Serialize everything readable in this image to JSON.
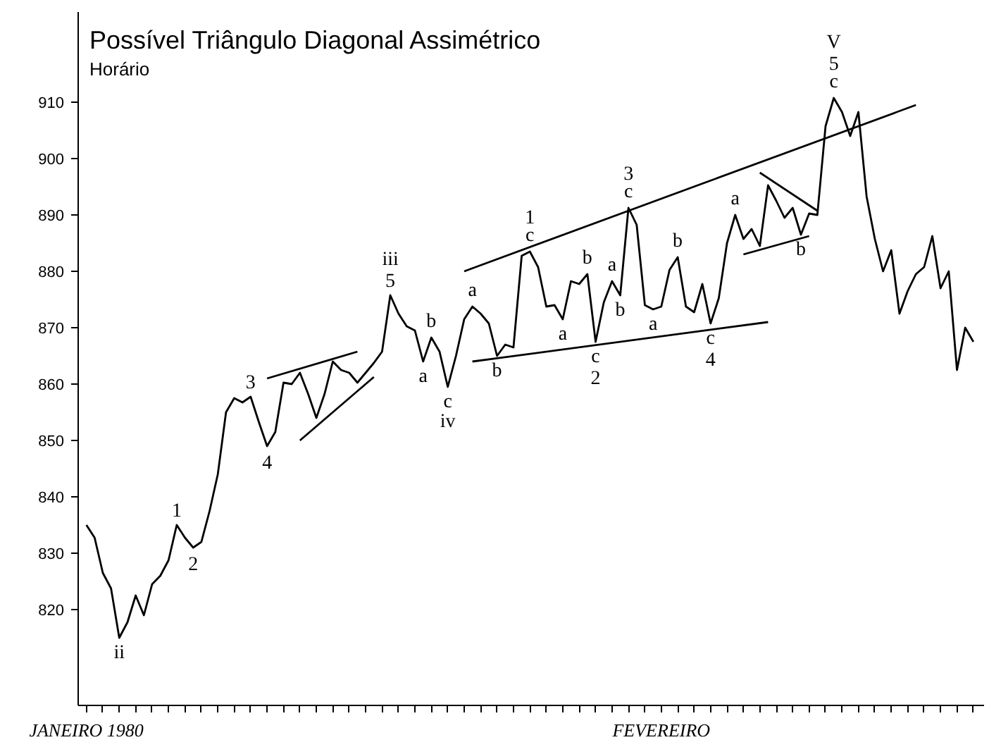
{
  "chart_data": {
    "type": "line",
    "title": "Possível Triângulo Diagonal Assimétrico",
    "subtitle": "Horário",
    "categories": [
      "JANEIRO 1980",
      null,
      null,
      null,
      null,
      null,
      null,
      null,
      null,
      null,
      null,
      null,
      null,
      null,
      null,
      null,
      null,
      null,
      null,
      null,
      null,
      null,
      null,
      null,
      null,
      null,
      null,
      null,
      null,
      null,
      null,
      null,
      null,
      null,
      null,
      null,
      null,
      null,
      null,
      null,
      null,
      null,
      null,
      null,
      null,
      null,
      null,
      null,
      null,
      null,
      null,
      null,
      null,
      null,
      null,
      null,
      null,
      null,
      null,
      null,
      null,
      null,
      null,
      null,
      null,
      null,
      null,
      null,
      null,
      null,
      "FEVEREIRO",
      null,
      null,
      null,
      null,
      null,
      null,
      null,
      null,
      null,
      null,
      null,
      null,
      null,
      null,
      null,
      null,
      null,
      null,
      null,
      null,
      null,
      null,
      null,
      null,
      null,
      null,
      null,
      null,
      null,
      null,
      null,
      null,
      null,
      null,
      null,
      null,
      null,
      null
    ],
    "ylim": [
      803,
      926
    ],
    "yticks": [
      820,
      830,
      840,
      850,
      860,
      870,
      880,
      890,
      900,
      910
    ],
    "grid": false,
    "marker": "none",
    "line_style": "solid",
    "series": [
      {
        "color": "#000000",
        "values": [
          835,
          832.75,
          826.5,
          823.75,
          815,
          817.75,
          822.5,
          819,
          824.5,
          826,
          828.75,
          835,
          832.75,
          831,
          832,
          837.5,
          844,
          855,
          857.5,
          856.75,
          857.75,
          853.25,
          849,
          851.5,
          860.25,
          860,
          862,
          858.25,
          854,
          858.25,
          864,
          862.5,
          862,
          860.25,
          862,
          863.75,
          865.75,
          875.75,
          872.5,
          870.25,
          869.5,
          864,
          868.25,
          865.75,
          859.5,
          865,
          871.5,
          873.75,
          872.5,
          870.75,
          865,
          867,
          866.5,
          882.75,
          883.5,
          880.75,
          873.75,
          874,
          871.5,
          878.25,
          877.75,
          879.5,
          867.5,
          874.5,
          878.25,
          875.75,
          891.25,
          888.25,
          874,
          873.25,
          873.75,
          880.25,
          882.5,
          873.75,
          872.75,
          877.75,
          870.75,
          875.25,
          885,
          890,
          885.75,
          887.5,
          884.5,
          895.25,
          892.5,
          889.5,
          891.25,
          886.5,
          890.25,
          890,
          905.75,
          910.75,
          908.25,
          904,
          908.25,
          893.25,
          885.75,
          880,
          883.75,
          872.5,
          876.5,
          879.5,
          880.75,
          886.25,
          877,
          880,
          862.5,
          870,
          867.5
        ]
      },
      {
        "type": "line",
        "color": "#000000",
        "values": [
          null,
          null,
          null,
          null,
          null,
          null,
          null,
          null,
          null,
          null,
          null,
          null,
          null,
          null,
          null,
          null,
          null,
          null,
          null,
          null,
          null,
          null,
          null,
          null,
          null,
          null,
          null,
          null,
          null,
          null,
          null,
          null,
          null,
          null,
          null,
          null,
          null,
          null,
          null,
          null,
          null,
          null,
          null,
          null,
          null,
          null,
          880,
          null,
          null,
          null,
          null,
          null,
          null,
          null,
          null,
          null,
          null,
          null,
          null,
          null,
          null,
          null,
          null,
          null,
          null,
          null,
          null,
          null,
          null,
          null,
          null,
          null,
          null,
          null,
          null,
          null,
          null,
          null,
          null,
          null,
          null,
          null,
          null,
          null,
          null,
          null,
          null,
          null,
          null,
          null,
          null,
          null,
          null,
          null,
          null,
          null,
          null,
          null,
          null,
          null,
          null,
          909.5,
          null,
          null,
          null,
          null,
          null,
          null,
          null
        ]
      },
      {
        "type": "line",
        "color": "#000000",
        "values": [
          null,
          null,
          null,
          null,
          null,
          null,
          null,
          null,
          null,
          null,
          null,
          null,
          null,
          null,
          null,
          null,
          null,
          null,
          null,
          null,
          null,
          null,
          null,
          null,
          null,
          null,
          null,
          null,
          null,
          null,
          null,
          null,
          null,
          null,
          null,
          null,
          null,
          null,
          null,
          null,
          null,
          null,
          null,
          null,
          null,
          null,
          null,
          864,
          null,
          null,
          null,
          null,
          null,
          null,
          null,
          null,
          null,
          null,
          null,
          null,
          null,
          null,
          null,
          null,
          null,
          null,
          null,
          null,
          null,
          null,
          null,
          null,
          null,
          null,
          null,
          null,
          null,
          null,
          null,
          null,
          null,
          null,
          null,
          871,
          null,
          null,
          null,
          null,
          null,
          null,
          null,
          null,
          null,
          null,
          null,
          null,
          null,
          null,
          null,
          null,
          null,
          null,
          null,
          null,
          null,
          null,
          null,
          null,
          null
        ]
      },
      {
        "type": "line",
        "color": "#000000",
        "values": [
          null,
          null,
          null,
          null,
          null,
          null,
          null,
          null,
          null,
          null,
          null,
          null,
          null,
          null,
          null,
          null,
          null,
          null,
          null,
          null,
          null,
          null,
          861,
          null,
          null,
          null,
          null,
          null,
          null,
          null,
          null,
          null,
          null,
          865.75,
          null,
          null,
          null,
          null,
          null,
          null,
          null,
          null,
          null,
          null,
          null,
          null,
          null,
          null,
          null,
          null,
          null,
          null,
          null,
          null,
          null,
          null,
          null,
          null,
          null,
          null,
          null,
          null,
          null,
          null,
          null,
          null,
          null,
          null,
          null,
          null,
          null,
          null,
          null,
          null,
          null,
          null,
          null,
          null,
          null,
          null,
          null,
          null,
          null,
          null,
          null,
          null,
          null,
          null,
          null,
          null,
          null,
          null,
          null,
          null,
          null,
          null,
          null,
          null,
          null,
          null,
          null,
          null,
          null,
          null,
          null,
          null,
          null,
          null,
          null
        ]
      },
      {
        "type": "line",
        "color": "#000000",
        "values": [
          null,
          null,
          null,
          null,
          null,
          null,
          null,
          null,
          null,
          null,
          null,
          null,
          null,
          null,
          null,
          null,
          null,
          null,
          null,
          null,
          null,
          null,
          null,
          null,
          null,
          null,
          850,
          null,
          null,
          null,
          null,
          null,
          null,
          null,
          null,
          861.25,
          null,
          null,
          null,
          null,
          null,
          null,
          null,
          null,
          null,
          null,
          null,
          null,
          null,
          null,
          null,
          null,
          null,
          null,
          null,
          null,
          null,
          null,
          null,
          null,
          null,
          null,
          null,
          null,
          null,
          null,
          null,
          null,
          null,
          null,
          null,
          null,
          null,
          null,
          null,
          null,
          null,
          null,
          null,
          null,
          null,
          null,
          null,
          null,
          null,
          null,
          null,
          null,
          null,
          null,
          null,
          null,
          null,
          null,
          null,
          null,
          null,
          null,
          null,
          null,
          null,
          null,
          null,
          null,
          null,
          null,
          null,
          null,
          null
        ]
      },
      {
        "type": "line",
        "color": "#000000",
        "values": [
          null,
          null,
          null,
          null,
          null,
          null,
          null,
          null,
          null,
          null,
          null,
          null,
          null,
          null,
          null,
          null,
          null,
          null,
          null,
          null,
          null,
          null,
          null,
          null,
          null,
          null,
          null,
          null,
          null,
          null,
          null,
          null,
          null,
          null,
          null,
          null,
          null,
          null,
          null,
          null,
          null,
          null,
          null,
          null,
          null,
          null,
          null,
          null,
          null,
          null,
          null,
          null,
          null,
          null,
          null,
          null,
          null,
          null,
          null,
          null,
          null,
          null,
          null,
          null,
          null,
          null,
          null,
          null,
          null,
          null,
          null,
          null,
          null,
          null,
          null,
          null,
          null,
          null,
          null,
          null,
          null,
          null,
          897.5,
          null,
          null,
          null,
          null,
          null,
          null,
          890.75,
          null,
          null,
          null,
          null,
          null,
          null,
          null,
          null,
          null,
          null,
          null,
          null,
          null,
          null,
          null,
          null,
          null,
          null,
          null
        ]
      },
      {
        "type": "line",
        "color": "#000000",
        "values": [
          null,
          null,
          null,
          null,
          null,
          null,
          null,
          null,
          null,
          null,
          null,
          null,
          null,
          null,
          null,
          null,
          null,
          null,
          null,
          null,
          null,
          null,
          null,
          null,
          null,
          null,
          null,
          null,
          null,
          null,
          null,
          null,
          null,
          null,
          null,
          null,
          null,
          null,
          null,
          null,
          null,
          null,
          null,
          null,
          null,
          null,
          null,
          null,
          null,
          null,
          null,
          null,
          null,
          null,
          null,
          null,
          null,
          null,
          null,
          null,
          null,
          null,
          null,
          null,
          null,
          null,
          null,
          null,
          null,
          null,
          null,
          null,
          null,
          null,
          null,
          null,
          null,
          null,
          null,
          null,
          883,
          null,
          null,
          null,
          null,
          null,
          null,
          null,
          886.25,
          null,
          null,
          null,
          null,
          null,
          null,
          null,
          null,
          null,
          null,
          null,
          null,
          null,
          null,
          null,
          null,
          null,
          null,
          null,
          null
        ]
      }
    ],
    "annotations": [
      {
        "text": "ii",
        "y": 815
      },
      {
        "text": "1",
        "y": 835
      },
      {
        "text": "2",
        "y": 831
      },
      {
        "text": "3",
        "y": 857.75
      },
      {
        "text": "4",
        "y": 849
      },
      {
        "text": "iii",
        "y": 875.75
      },
      {
        "text": "5",
        "y": 875.75
      },
      {
        "text": "a",
        "y": 864
      },
      {
        "text": "b",
        "y": 868.25
      },
      {
        "text": "c",
        "y": 859.5
      },
      {
        "text": "iv",
        "y": 859.5
      },
      {
        "text": "a",
        "y": 873.75
      },
      {
        "text": "b",
        "y": 865
      },
      {
        "text": "1",
        "y": 883.5
      },
      {
        "text": "c",
        "y": 883.5
      },
      {
        "text": "a",
        "y": 871.5
      },
      {
        "text": "b",
        "y": 879.5
      },
      {
        "text": "c",
        "y": 867.5
      },
      {
        "text": "2",
        "y": 867.5
      },
      {
        "text": "a",
        "y": 878.25
      },
      {
        "text": "b",
        "y": 875.75
      },
      {
        "text": "3",
        "y": 891.25
      },
      {
        "text": "c",
        "y": 891.25
      },
      {
        "text": "a",
        "y": 873.25
      },
      {
        "text": "b",
        "y": 882.5
      },
      {
        "text": "c",
        "y": 870.75
      },
      {
        "text": "4",
        "y": 870.75
      },
      {
        "text": "a",
        "y": 890
      },
      {
        "text": "b",
        "y": 886.5
      },
      {
        "text": "V",
        "y": 910.75
      },
      {
        "text": "5",
        "y": 910.75
      },
      {
        "text": "c",
        "y": 910.75
      }
    ]
  }
}
